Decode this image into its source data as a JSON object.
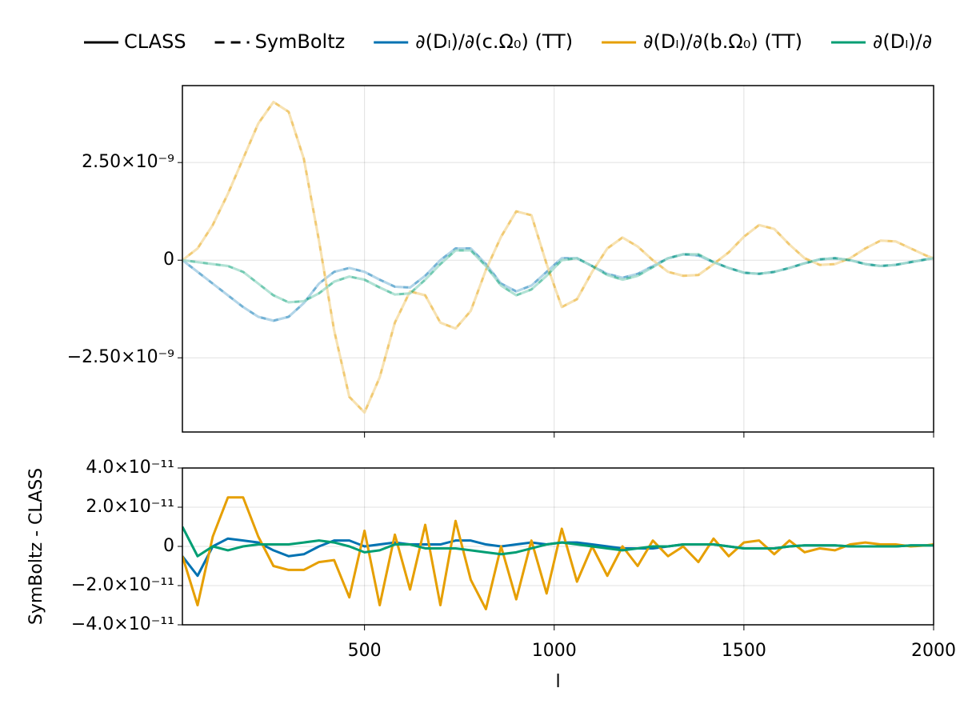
{
  "chart_data": [
    {
      "type": "line",
      "legend_styles": [
        {
          "name": "CLASS",
          "dash": "solid"
        },
        {
          "name": "SymBoltz",
          "dash": "dashed"
        }
      ],
      "x": [
        20,
        60,
        100,
        140,
        180,
        220,
        260,
        300,
        340,
        380,
        420,
        460,
        500,
        540,
        580,
        620,
        660,
        700,
        740,
        780,
        820,
        860,
        900,
        940,
        980,
        1020,
        1060,
        1100,
        1140,
        1180,
        1220,
        1260,
        1300,
        1340,
        1380,
        1420,
        1460,
        1500,
        1540,
        1580,
        1620,
        1660,
        1700,
        1740,
        1780,
        1820,
        1860,
        1900,
        1940,
        1980,
        2000
      ],
      "series": [
        {
          "name": "∂(Dₗ)/∂(c.Ω₀) (TT)",
          "color": "#0072b2",
          "values": [
            0,
            -3e-10,
            -6e-10,
            -9e-10,
            -1.2e-09,
            -1.45e-09,
            -1.55e-09,
            -1.45e-09,
            -1.1e-09,
            -6e-10,
            -3e-10,
            -2e-10,
            -3e-10,
            -5e-10,
            -6.8e-10,
            -7e-10,
            -4e-10,
            0,
            3e-10,
            3e-10,
            -1e-10,
            -6e-10,
            -8e-10,
            -6.5e-10,
            -3e-10,
            5e-11,
            5e-11,
            -1.5e-10,
            -3.5e-10,
            -4.5e-10,
            -3.5e-10,
            -1.5e-10,
            5e-11,
            1.5e-10,
            1.2e-10,
            -5e-11,
            -2e-10,
            -3.2e-10,
            -3.5e-10,
            -3e-10,
            -2e-10,
            -8e-11,
            2e-11,
            5e-11,
            0,
            -1e-10,
            -1.5e-10,
            -1.2e-10,
            -5e-11,
            2e-11,
            5e-11
          ]
        },
        {
          "name": "∂(Dₗ)/∂(b.Ω₀) (TT)",
          "color": "#e69f00",
          "values": [
            0,
            3e-10,
            9e-10,
            1.7e-09,
            2.6e-09,
            3.5e-09,
            4.05e-09,
            3.8e-09,
            2.6e-09,
            5e-10,
            -1.8e-09,
            -3.5e-09,
            -3.9e-09,
            -3e-09,
            -1.6e-09,
            -8e-10,
            -9e-10,
            -1.6e-09,
            -1.75e-09,
            -1.3e-09,
            -2.5e-10,
            6e-10,
            1.25e-09,
            1.15e-09,
            -1e-10,
            -1.2e-09,
            -1e-09,
            -3e-10,
            3e-10,
            5.8e-10,
            3.5e-10,
            0,
            -3e-10,
            -4e-10,
            -3.8e-10,
            -1e-10,
            2e-10,
            6e-10,
            9e-10,
            8e-10,
            4e-10,
            5e-11,
            -1.2e-10,
            -1e-10,
            5e-11,
            3e-10,
            5e-10,
            4.8e-10,
            3e-10,
            1.2e-10,
            5e-11
          ]
        },
        {
          "name": "∂(Dₗ)/∂",
          "color": "#009e73",
          "values": [
            0,
            -5e-11,
            -1e-10,
            -1.5e-10,
            -3e-10,
            -6e-10,
            -9e-10,
            -1.08e-09,
            -1.05e-09,
            -8.5e-10,
            -5.5e-10,
            -4.2e-10,
            -5e-10,
            -7e-10,
            -8.8e-10,
            -8.5e-10,
            -5e-10,
            -1e-10,
            2.5e-10,
            2.5e-10,
            -1.5e-10,
            -6.5e-10,
            -9e-10,
            -7.5e-10,
            -4e-10,
            0,
            5e-11,
            -1.5e-10,
            -3.8e-10,
            -5e-10,
            -4e-10,
            -1.8e-10,
            5e-11,
            1.5e-10,
            1.5e-10,
            -5e-11,
            -2e-10,
            -3.2e-10,
            -3.5e-10,
            -3e-10,
            -2e-10,
            -8e-11,
            2e-11,
            5e-11,
            0,
            -1e-10,
            -1.5e-10,
            -1.2e-10,
            -5e-11,
            2e-11,
            5e-11
          ]
        }
      ],
      "xlim": [
        20,
        2000
      ],
      "xticks": [
        500,
        1000,
        1500,
        2000
      ],
      "ylim": [
        -4.4e-09,
        4.47e-09
      ],
      "yticks": [
        {
          "value": -2.5e-09,
          "label": "−2.50×10⁻⁹"
        },
        0,
        {
          "value": 2.5e-09,
          "label": "2.50×10⁻⁹"
        }
      ],
      "grid": true
    },
    {
      "type": "line",
      "x": [
        20,
        60,
        100,
        140,
        180,
        220,
        260,
        300,
        340,
        380,
        420,
        460,
        500,
        540,
        580,
        620,
        660,
        700,
        740,
        780,
        820,
        860,
        900,
        940,
        980,
        1020,
        1060,
        1100,
        1140,
        1180,
        1220,
        1260,
        1300,
        1340,
        1380,
        1420,
        1460,
        1500,
        1540,
        1580,
        1620,
        1660,
        1700,
        1740,
        1780,
        1820,
        1860,
        1900,
        1940,
        1980,
        2000
      ],
      "series": [
        {
          "color": "#0072b2",
          "values": [
            -5e-12,
            -1.5e-11,
            0,
            4e-12,
            3e-12,
            2e-12,
            -2e-12,
            -5e-12,
            -4e-12,
            0,
            3e-12,
            3e-12,
            0,
            1e-12,
            2e-12,
            1e-12,
            1e-12,
            1e-12,
            3e-12,
            3e-12,
            1e-12,
            0,
            1e-12,
            2e-12,
            1e-12,
            2e-12,
            2e-12,
            1e-12,
            0,
            -1e-12,
            -1e-12,
            -1e-12,
            0,
            1e-12,
            1e-12,
            1e-12,
            0,
            -1e-12,
            -1e-12,
            -1e-12,
            0,
            5e-13,
            5e-13,
            5e-13,
            0,
            0,
            0,
            0,
            5e-13,
            5e-13,
            5e-13
          ]
        },
        {
          "color": "#e69f00",
          "values": [
            -5e-12,
            -3e-11,
            5e-12,
            2.5e-11,
            2.5e-11,
            5e-12,
            -1e-11,
            -1.2e-11,
            -1.2e-11,
            -8e-12,
            -7e-12,
            -2.6e-11,
            8e-12,
            -3e-11,
            6e-12,
            -2.2e-11,
            1.1e-11,
            -3e-11,
            1.3e-11,
            -1.7e-11,
            -3.2e-11,
            0,
            -2.7e-11,
            3e-12,
            -2.4e-11,
            9e-12,
            -1.8e-11,
            0,
            -1.5e-11,
            0,
            -1e-11,
            3e-12,
            -5e-12,
            0,
            -8e-12,
            4e-12,
            -5e-12,
            2e-12,
            3e-12,
            -4e-12,
            3e-12,
            -3e-12,
            -1e-12,
            -2e-12,
            1e-12,
            2e-12,
            1e-12,
            1e-12,
            0,
            5e-13,
            1e-12
          ]
        },
        {
          "color": "#009e73",
          "values": [
            1e-11,
            -5e-12,
            0,
            -2e-12,
            0,
            1e-12,
            1e-12,
            1e-12,
            2e-12,
            3e-12,
            2e-12,
            0,
            -3e-12,
            -2e-12,
            1e-12,
            1e-12,
            -1e-12,
            -1e-12,
            -1e-12,
            -2e-12,
            -3e-12,
            -4e-12,
            -3e-12,
            -1e-12,
            1e-12,
            2e-12,
            1e-12,
            0,
            -1e-12,
            -2e-12,
            -1e-12,
            0,
            0,
            1e-12,
            1e-12,
            1e-12,
            0,
            -1e-12,
            -1e-12,
            -1e-12,
            0,
            5e-13,
            5e-13,
            5e-13,
            0,
            0,
            0,
            0,
            5e-13,
            5e-13,
            5e-13
          ]
        }
      ],
      "xlim": [
        20,
        2000
      ],
      "xticks": [
        500,
        1000,
        1500,
        2000
      ],
      "ylim": [
        -4e-11,
        4e-11
      ],
      "yticks": [
        {
          "value": -4e-11,
          "label": "−4.0×10⁻¹¹"
        },
        {
          "value": -2e-11,
          "label": "−2.0×10⁻¹¹"
        },
        0,
        {
          "value": 2e-11,
          "label": "2.0×10⁻¹¹"
        },
        {
          "value": 4e-11,
          "label": "4.0×10⁻¹¹"
        }
      ],
      "xlabel": "l",
      "ylabel": "SymBoltz - CLASS",
      "grid": true
    }
  ]
}
